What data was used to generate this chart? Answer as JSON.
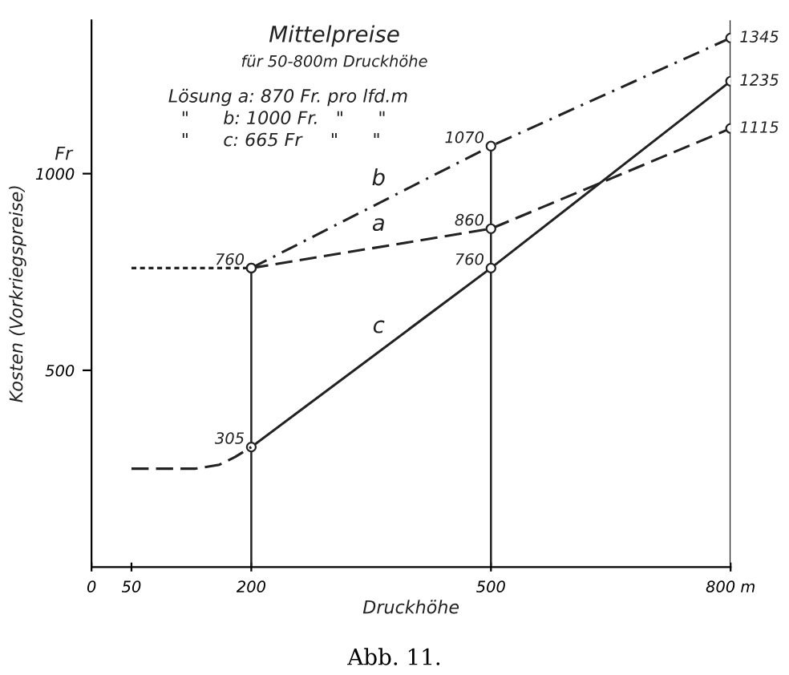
{
  "chart_data": {
    "type": "line",
    "title": "Mittelpreise",
    "subtitle": "für 50-800m Druckhöhe",
    "xlabel": "Druckhöhe",
    "ylabel": "Kosten (Vorkriegspreise)",
    "annotations": [
      "Fr",
      "Lösung a: 870 Fr. pro lfd.m",
      "\"      b: 1000 Fr.   \"      \"",
      "\"      c: 665 Fr     \"      \"",
      "Abb. 11."
    ],
    "xlim": [
      0,
      800
    ],
    "ylim": [
      0,
      1390
    ],
    "xticks": [
      0,
      50,
      200,
      500,
      {
        "value": 800,
        "label": "800 m"
      }
    ],
    "yticks": [
      500,
      1000
    ],
    "grid": false,
    "series": [
      {
        "name": "b",
        "color": "#222222",
        "x": [
          200,
          500,
          800
        ],
        "values": [
          760,
          1070,
          1345
        ],
        "line_style": "dashdot",
        "marker": "circle",
        "value_labels": [
          null,
          "1070",
          "1345"
        ]
      },
      {
        "name": "a",
        "color": "#222222",
        "x": [
          200,
          500,
          800
        ],
        "values": [
          760,
          860,
          1115
        ],
        "line_style": "dashed",
        "marker": "circle",
        "value_labels": [
          "760",
          "860",
          "1115"
        ]
      },
      {
        "name": "c",
        "color": "#222222",
        "x": [
          200,
          500,
          800
        ],
        "values": [
          305,
          760,
          1235
        ],
        "line_style": "solid",
        "marker": "circle",
        "value_labels": [
          "305",
          "760",
          "1235"
        ]
      },
      {
        "color": "#222222",
        "x": [
          50,
          200
        ],
        "values": [
          760,
          760
        ],
        "line_style": "dotted",
        "marker": "none"
      },
      {
        "color": "#222222",
        "x": [
          50,
          130,
          160,
          180,
          200
        ],
        "values": [
          250,
          250,
          260,
          280,
          305
        ],
        "line_style": "dashed",
        "marker": "none"
      }
    ]
  }
}
